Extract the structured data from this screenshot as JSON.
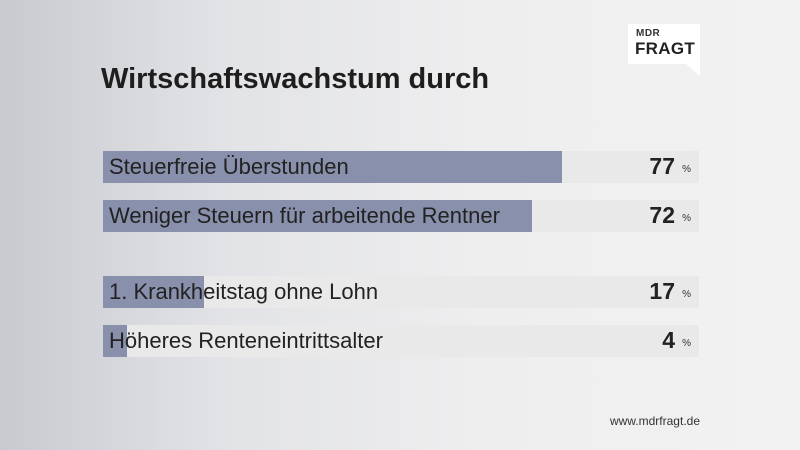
{
  "logo": {
    "top": "MDR",
    "main": "FRAGT"
  },
  "title": "Wirtschaftswachstum durch",
  "chart_data": {
    "type": "bar",
    "orientation": "horizontal",
    "title": "Wirtschaftswachstum durch",
    "categories": [
      "Steuerfreie Überstunden",
      "Weniger Steuern für arbeitende Rentner",
      "1. Krankheitstag ohne Lohn",
      "Höheres Renteneintrittsalter"
    ],
    "values": [
      77,
      72,
      17,
      4
    ],
    "unit": "%",
    "xlim": [
      0,
      100
    ],
    "colors": {
      "bar": "#8990ac",
      "track": "#e9e9ea"
    }
  },
  "footer": {
    "url": "www.mdrfragt.de"
  }
}
